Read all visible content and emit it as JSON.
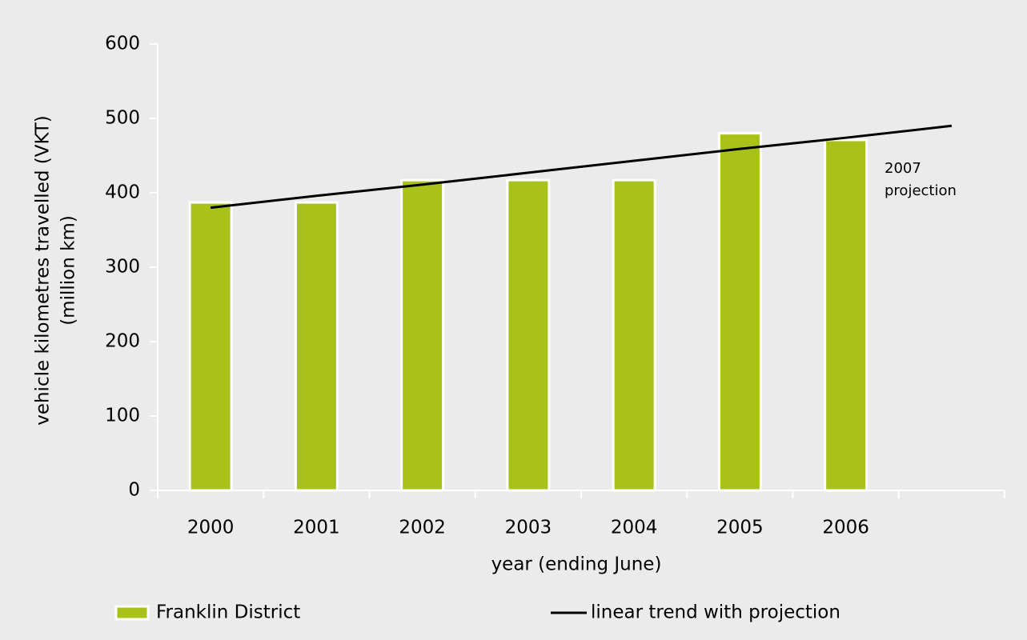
{
  "chart_data": {
    "type": "bar",
    "y_label": [
      "vehicle kilometres travelled (VKT)",
      "(million km)"
    ],
    "x_label": "year (ending June)",
    "categories": [
      "2000",
      "2001",
      "2002",
      "2003",
      "2004",
      "2005",
      "2006",
      null
    ],
    "series": [
      {
        "name": "Franklin District",
        "type": "bar",
        "color": "#a9c21a",
        "values": [
          387,
          387,
          417,
          417,
          417,
          480,
          471,
          null
        ]
      },
      {
        "name": "linear trend with projection",
        "type": "line",
        "color": "#000000",
        "values": [
          380,
          396,
          411,
          427,
          443,
          459,
          474,
          490
        ]
      }
    ],
    "annotation": [
      "2007",
      "projection"
    ],
    "ylim": [
      0,
      600
    ],
    "yticks": [
      0,
      100,
      200,
      300,
      400,
      500,
      600
    ],
    "legend": "bottom"
  }
}
